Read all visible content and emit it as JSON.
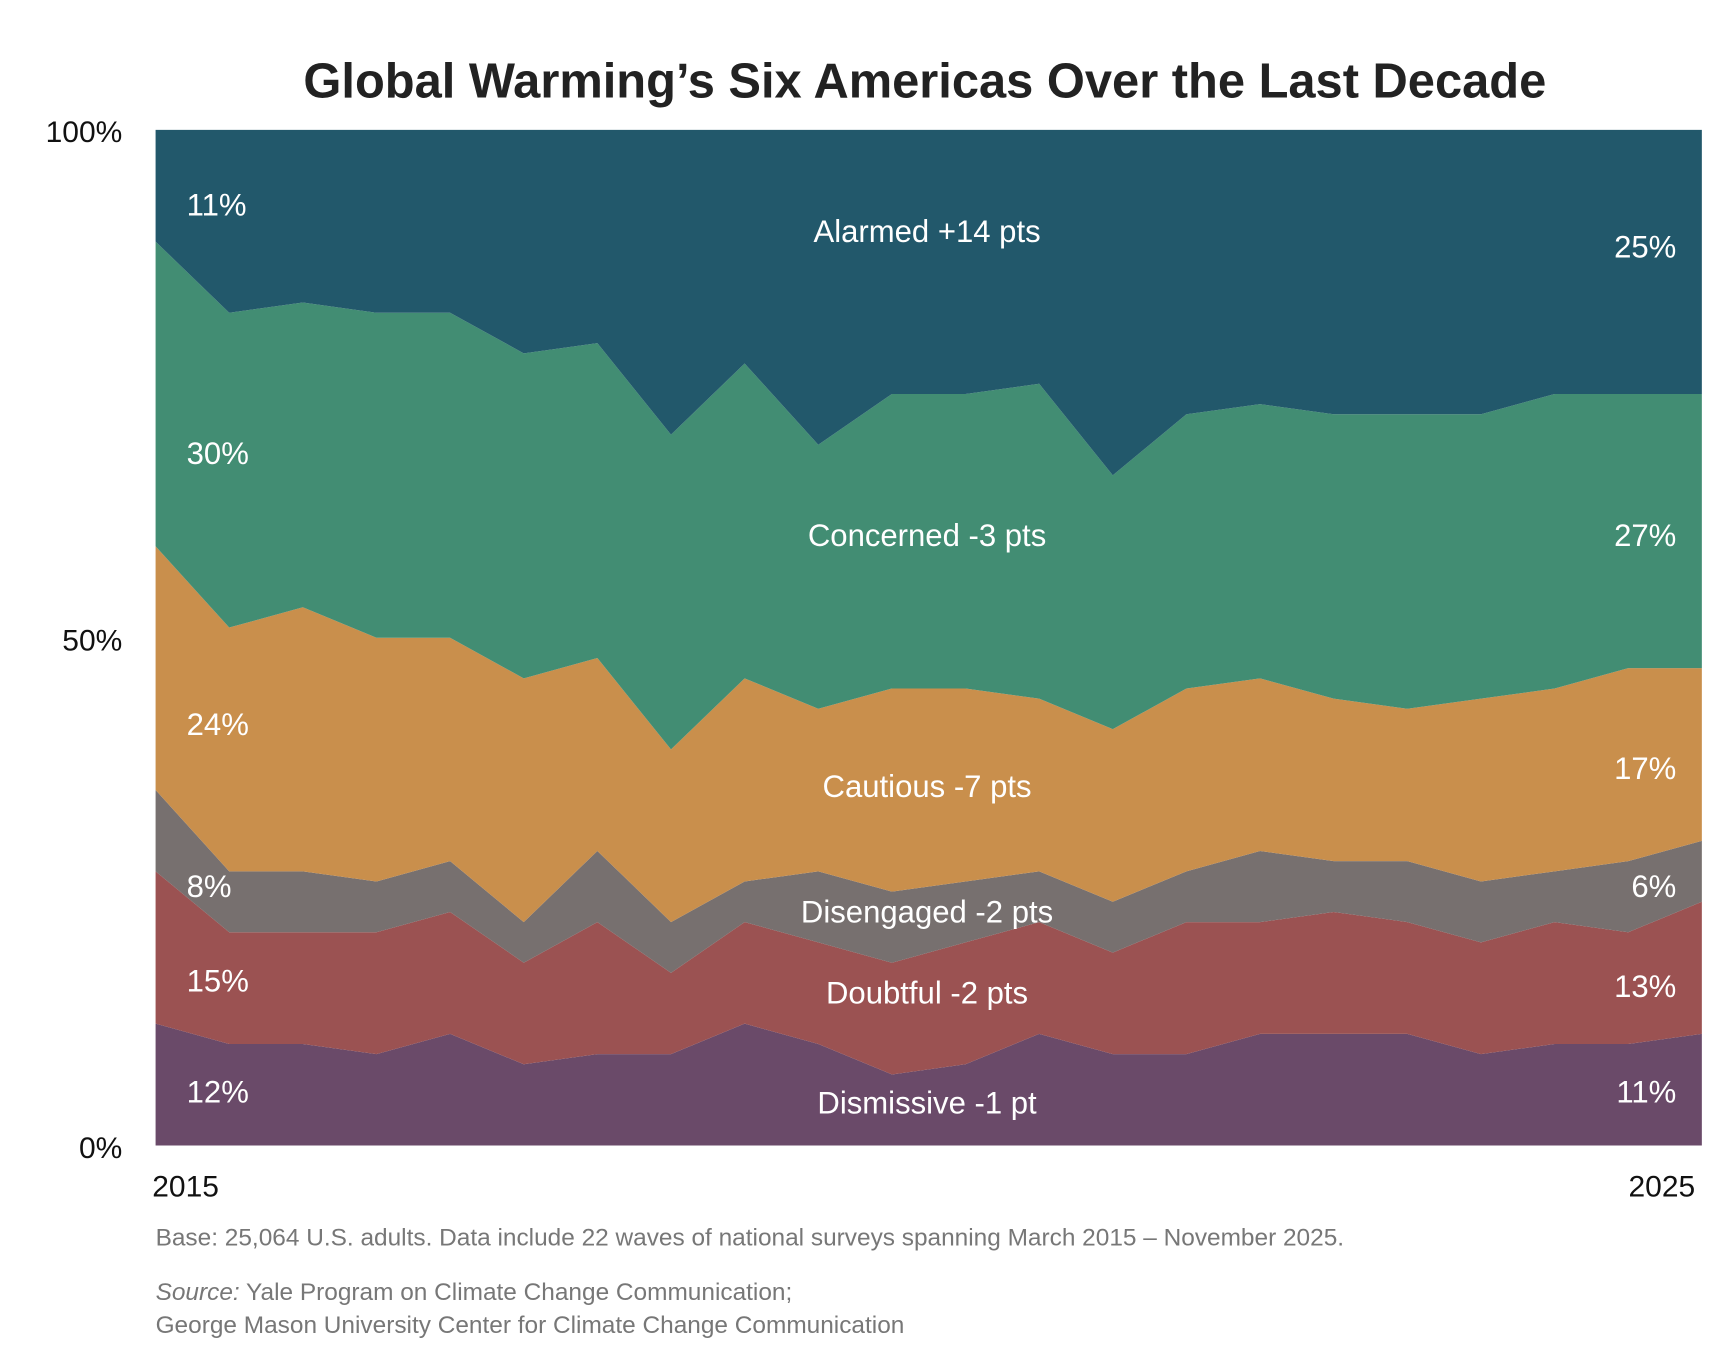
{
  "chart_data": {
    "type": "area",
    "stacked": true,
    "title": "Global Warming’s Six Americas Over the Last Decade",
    "xlabel": "",
    "ylabel": "",
    "ylim": [
      0,
      100
    ],
    "y_ticks": [
      "0%",
      "50%",
      "100%"
    ],
    "x_ticks": [
      "2015",
      "2025"
    ],
    "waves": 22,
    "series": [
      {
        "name": "Dismissive",
        "color": "#6A4A69",
        "label": "Dismissive -1 pt",
        "start_label": "12%",
        "end_label": "11%",
        "values": [
          12,
          10,
          10,
          9,
          11,
          8,
          9,
          9,
          12,
          10,
          7,
          8,
          11,
          9,
          9,
          11,
          11,
          11,
          9,
          10,
          10,
          11
        ]
      },
      {
        "name": "Doubtful",
        "color": "#9B5252",
        "label": "Doubtful -2 pts",
        "start_label": "15%",
        "end_label": "13%",
        "values": [
          15,
          11,
          11,
          12,
          12,
          10,
          13,
          8,
          10,
          10,
          11,
          12,
          11,
          10,
          13,
          11,
          12,
          11,
          11,
          12,
          11,
          13
        ]
      },
      {
        "name": "Disengaged",
        "color": "#77706F",
        "label": "Disengaged -2 pts",
        "start_label": "8%",
        "end_label": "6%",
        "values": [
          8,
          6,
          6,
          5,
          5,
          4,
          7,
          5,
          4,
          7,
          7,
          6,
          5,
          5,
          5,
          7,
          5,
          6,
          6,
          5,
          7,
          6
        ]
      },
      {
        "name": "Cautious",
        "color": "#C98F4C",
        "label": "Cautious -7 pts",
        "start_label": "24%",
        "end_label": "17%",
        "values": [
          24,
          24,
          26,
          24,
          22,
          24,
          19,
          17,
          20,
          16,
          20,
          19,
          17,
          17,
          18,
          17,
          16,
          15,
          18,
          18,
          19,
          17
        ]
      },
      {
        "name": "Concerned",
        "color": "#428D73",
        "label": "Concerned -3 pts",
        "start_label": "30%",
        "end_label": "27%",
        "values": [
          30,
          31,
          30,
          32,
          32,
          32,
          31,
          31,
          31,
          26,
          29,
          29,
          31,
          25,
          27,
          27,
          28,
          29,
          28,
          29,
          27,
          27
        ]
      },
      {
        "name": "Alarmed",
        "color": "#22586B",
        "label": "Alarmed +14 pts",
        "start_label": "11%",
        "end_label": "25%",
        "values": [
          11,
          17,
          17,
          18,
          18,
          22,
          21,
          30,
          23,
          31,
          26,
          26,
          24,
          33,
          28,
          26,
          27,
          28,
          27,
          26,
          26,
          25
        ]
      }
    ]
  },
  "footer": {
    "base": "Base: 25,064 U.S. adults. Data include 22 waves of national surveys spanning March 2015 – November 2025.",
    "source_prefix": "Source:",
    "source_line1": " Yale Program on Climate Change Communication;",
    "source_line2": "George Mason University Center for Climate Change Communication"
  }
}
